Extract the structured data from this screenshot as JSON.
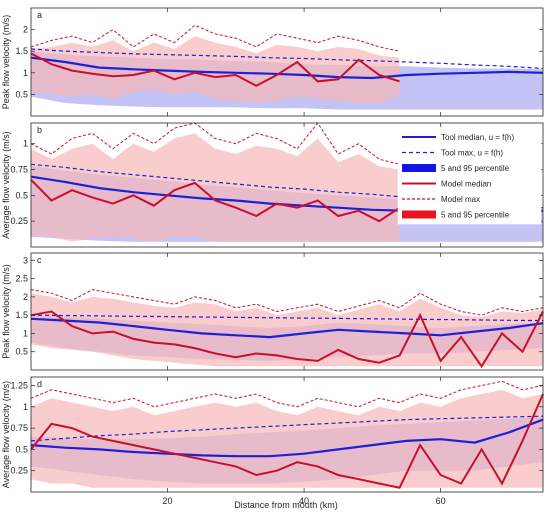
{
  "chart_data": {
    "type": "area",
    "xlabel": "Distance from mouth (km)",
    "xlim": [
      0,
      75
    ],
    "xticks": [
      "20",
      "40",
      "60"
    ],
    "xtick_values": [
      20,
      40,
      60
    ],
    "colors": {
      "tool_line": "#1f1fd6",
      "tool_band": "#b8b8f5",
      "model_line": "#c8102e",
      "model_band": "#f7b8b8"
    },
    "legend": {
      "placement": "right, in panel b",
      "entries": [
        {
          "label": "Tool median, u = f(h)",
          "style": "solid-blue"
        },
        {
          "label": "Tool max, u = f(h)",
          "style": "dashed-blue"
        },
        {
          "label": "5 and 95 percentile",
          "style": "blue-patch"
        },
        {
          "label": "Model median",
          "style": "solid-red"
        },
        {
          "label": "Model max",
          "style": "dashed-red"
        },
        {
          "label": "5 and 95 percentile",
          "style": "red-patch"
        }
      ]
    },
    "panels": [
      {
        "id": "a",
        "ylabel": "Peak flow velocity (m/s)",
        "ylim": [
          0,
          2.5
        ],
        "yticks": [
          0.5,
          1,
          1.5,
          2
        ],
        "ytick_labels": [
          "0.5",
          "1",
          "1.5",
          "2"
        ],
        "tool_x": [
          0,
          5,
          10,
          15,
          20,
          25,
          30,
          35,
          40,
          45,
          50,
          55,
          60,
          65,
          70,
          75
        ],
        "tool_median": [
          1.35,
          1.25,
          1.12,
          1.08,
          1.05,
          1.02,
          1.0,
          0.98,
          0.95,
          0.9,
          0.88,
          0.95,
          0.98,
          1.0,
          1.02,
          1.0
        ],
        "tool_max": [
          1.55,
          1.5,
          1.47,
          1.44,
          1.42,
          1.4,
          1.38,
          1.35,
          1.33,
          1.3,
          1.28,
          1.25,
          1.22,
          1.18,
          1.15,
          1.1
        ],
        "tool_p5": [
          0.45,
          0.3,
          0.25,
          0.22,
          0.2,
          0.2,
          0.2,
          0.18,
          0.18,
          0.15,
          0.15,
          0.15,
          0.15,
          0.15,
          0.15,
          0.15
        ],
        "tool_p95": [
          1.5,
          1.42,
          1.38,
          1.35,
          1.32,
          1.3,
          1.27,
          1.25,
          1.2,
          1.18,
          1.15,
          1.15,
          1.12,
          1.1,
          1.1,
          1.08
        ],
        "model_x": [
          0,
          3,
          6,
          9,
          12,
          15,
          18,
          21,
          24,
          27,
          30,
          33,
          36,
          39,
          42,
          45,
          48,
          51,
          54
        ],
        "model_median": [
          1.45,
          1.2,
          1.05,
          0.98,
          0.92,
          0.95,
          1.05,
          0.85,
          1.0,
          0.9,
          0.95,
          0.7,
          0.95,
          1.25,
          0.8,
          0.85,
          1.3,
          0.95,
          0.8
        ],
        "model_max": [
          1.6,
          1.75,
          1.85,
          1.7,
          2.0,
          1.6,
          1.9,
          1.7,
          2.1,
          1.9,
          1.8,
          1.6,
          1.9,
          1.8,
          1.7,
          1.85,
          1.75,
          1.6,
          1.5
        ],
        "model_p5": [
          0.55,
          0.5,
          0.45,
          0.5,
          0.4,
          0.55,
          0.6,
          0.5,
          0.55,
          0.4,
          0.35,
          0.3,
          0.35,
          0.45,
          0.4,
          0.35,
          0.3,
          0.3,
          0.45
        ],
        "model_p95": [
          1.55,
          1.6,
          1.7,
          1.6,
          1.75,
          1.5,
          1.7,
          1.55,
          1.85,
          1.7,
          1.6,
          1.45,
          1.65,
          1.6,
          1.5,
          1.6,
          1.55,
          1.4,
          1.35
        ]
      },
      {
        "id": "b",
        "ylabel": "Average flow velocity (m/s)",
        "ylim": [
          0,
          1.2
        ],
        "yticks": [
          0.25,
          0.5,
          0.75,
          1
        ],
        "ytick_labels": [
          "0.25",
          "0.5",
          "0.75",
          "1"
        ],
        "tool_x": [
          0,
          5,
          10,
          15,
          20,
          25,
          30,
          35,
          40,
          45,
          50,
          55,
          60,
          65,
          70,
          75
        ],
        "tool_median": [
          0.68,
          0.63,
          0.57,
          0.53,
          0.5,
          0.47,
          0.45,
          0.42,
          0.4,
          0.38,
          0.36,
          0.35,
          0.36,
          0.35,
          0.35,
          0.35
        ],
        "tool_max": [
          0.8,
          0.77,
          0.73,
          0.7,
          0.67,
          0.64,
          0.61,
          0.58,
          0.56,
          0.53,
          0.51,
          0.48,
          0.46,
          0.43,
          0.41,
          0.38
        ],
        "tool_p5": [
          0.1,
          0.08,
          0.06,
          0.05,
          0.05,
          0.05,
          0.05,
          0.05,
          0.05,
          0.05,
          0.05,
          0.05,
          0.05,
          0.05,
          0.05,
          0.05
        ],
        "tool_p95": [
          0.78,
          0.74,
          0.7,
          0.67,
          0.64,
          0.6,
          0.58,
          0.55,
          0.52,
          0.5,
          0.48,
          0.46,
          0.44,
          0.42,
          0.4,
          0.38
        ],
        "model_x": [
          0,
          3,
          6,
          9,
          12,
          15,
          18,
          21,
          24,
          27,
          30,
          33,
          36,
          39,
          42,
          45,
          48,
          51,
          54
        ],
        "model_median": [
          0.65,
          0.45,
          0.55,
          0.48,
          0.42,
          0.5,
          0.4,
          0.55,
          0.62,
          0.45,
          0.38,
          0.3,
          0.42,
          0.38,
          0.45,
          0.3,
          0.35,
          0.25,
          0.38
        ],
        "model_max": [
          1.0,
          0.9,
          1.05,
          1.1,
          0.95,
          1.1,
          1.0,
          1.15,
          1.2,
          1.05,
          1.0,
          1.1,
          1.05,
          0.95,
          1.2,
          0.9,
          1.0,
          0.85,
          0.8
        ],
        "model_p5": [
          0.1,
          0.1,
          0.05,
          0.08,
          0.1,
          0.08,
          0.05,
          0.1,
          0.1,
          0.05,
          0.05,
          0.05,
          0.05,
          0.05,
          0.05,
          0.05,
          0.05,
          0.05,
          0.05
        ],
        "model_p95": [
          0.95,
          0.85,
          0.95,
          1.0,
          0.85,
          1.0,
          0.92,
          1.05,
          1.1,
          0.95,
          0.9,
          0.98,
          0.95,
          0.88,
          1.05,
          0.82,
          0.9,
          0.78,
          0.75
        ]
      },
      {
        "id": "c",
        "ylabel": "Peak flow velocity (m/s)",
        "ylim": [
          0,
          3.2
        ],
        "yticks": [
          0.5,
          1,
          1.5,
          2,
          2.5,
          3
        ],
        "ytick_labels": [
          "0.5",
          "1",
          "1.5",
          "2",
          "2.5",
          "3"
        ],
        "tool_x": [
          0,
          5,
          10,
          15,
          20,
          25,
          30,
          35,
          40,
          45,
          50,
          55,
          60,
          65,
          70,
          75
        ],
        "tool_median": [
          1.4,
          1.35,
          1.3,
          1.2,
          1.1,
          1.0,
          0.95,
          0.9,
          1.0,
          1.1,
          1.05,
          1.0,
          0.95,
          1.05,
          1.15,
          1.28
        ],
        "tool_max": [
          1.5,
          1.49,
          1.48,
          1.47,
          1.46,
          1.45,
          1.44,
          1.43,
          1.42,
          1.41,
          1.4,
          1.39,
          1.38,
          1.37,
          1.36,
          1.35
        ],
        "tool_p5": [
          0.75,
          0.6,
          0.5,
          0.4,
          0.35,
          0.3,
          0.28,
          0.25,
          0.3,
          0.35,
          0.4,
          0.45,
          0.45,
          0.5,
          0.55,
          0.6
        ],
        "tool_p95": [
          1.48,
          1.45,
          1.4,
          1.35,
          1.3,
          1.25,
          1.2,
          1.15,
          1.2,
          1.3,
          1.25,
          1.2,
          1.15,
          1.2,
          1.25,
          1.3
        ],
        "model_x": [
          0,
          3,
          6,
          9,
          12,
          15,
          18,
          21,
          24,
          27,
          30,
          33,
          36,
          39,
          42,
          45,
          48,
          51,
          54,
          57,
          60,
          63,
          66,
          69,
          72,
          75
        ],
        "model_median": [
          1.5,
          1.6,
          1.2,
          1.0,
          1.05,
          0.85,
          0.75,
          0.7,
          0.6,
          0.45,
          0.35,
          0.45,
          0.4,
          0.3,
          0.25,
          0.55,
          0.3,
          0.2,
          0.4,
          1.5,
          0.25,
          0.9,
          0.1,
          1.0,
          0.5,
          1.6
        ],
        "model_max": [
          2.2,
          2.1,
          1.9,
          2.2,
          2.1,
          2.0,
          1.9,
          1.8,
          2.0,
          1.9,
          1.7,
          1.8,
          1.6,
          1.7,
          1.8,
          1.6,
          1.75,
          1.9,
          1.7,
          2.1,
          1.8,
          1.6,
          1.5,
          1.7,
          1.6,
          1.7
        ],
        "model_p5": [
          0.7,
          0.6,
          0.55,
          0.5,
          0.4,
          0.3,
          0.25,
          0.2,
          0.15,
          0.1,
          0.1,
          0.1,
          0.1,
          0.1,
          0.1,
          0.1,
          0.1,
          0.1,
          0.1,
          0.1,
          0.1,
          0.1,
          0.1,
          0.1,
          0.1,
          0.1
        ],
        "model_p95": [
          2.1,
          2.0,
          1.85,
          2.0,
          1.95,
          1.85,
          1.75,
          1.7,
          1.85,
          1.8,
          1.6,
          1.7,
          1.5,
          1.6,
          1.7,
          1.5,
          1.65,
          1.8,
          1.6,
          1.95,
          1.7,
          1.5,
          1.45,
          1.6,
          1.55,
          1.65
        ]
      },
      {
        "id": "d",
        "ylabel": "Average flow velocity (m/s)",
        "ylim": [
          0,
          1.35
        ],
        "yticks": [
          0.25,
          0.5,
          0.75,
          1,
          1.25
        ],
        "ytick_labels": [
          "0.25",
          "0.5",
          "0.75",
          "1",
          "1.25"
        ],
        "tool_x": [
          0,
          5,
          10,
          15,
          20,
          25,
          30,
          35,
          40,
          45,
          50,
          55,
          60,
          65,
          70,
          75
        ],
        "tool_median": [
          0.55,
          0.52,
          0.5,
          0.47,
          0.45,
          0.43,
          0.42,
          0.42,
          0.45,
          0.5,
          0.55,
          0.6,
          0.62,
          0.58,
          0.7,
          0.85
        ],
        "tool_max": [
          0.6,
          0.63,
          0.66,
          0.68,
          0.71,
          0.73,
          0.75,
          0.77,
          0.79,
          0.81,
          0.83,
          0.85,
          0.86,
          0.87,
          0.88,
          0.89
        ],
        "tool_p5": [
          0.3,
          0.25,
          0.2,
          0.15,
          0.12,
          0.1,
          0.1,
          0.1,
          0.12,
          0.15,
          0.2,
          0.25,
          0.25,
          0.25,
          0.3,
          0.35
        ],
        "tool_p95": [
          0.65,
          0.63,
          0.62,
          0.62,
          0.63,
          0.65,
          0.68,
          0.7,
          0.72,
          0.75,
          0.78,
          0.8,
          0.82,
          0.84,
          0.86,
          0.88
        ],
        "model_x": [
          0,
          3,
          6,
          9,
          12,
          15,
          18,
          21,
          24,
          27,
          30,
          33,
          36,
          39,
          42,
          45,
          48,
          51,
          54,
          57,
          60,
          63,
          66,
          69,
          72,
          75
        ],
        "model_median": [
          0.5,
          0.8,
          0.75,
          0.65,
          0.6,
          0.55,
          0.5,
          0.45,
          0.4,
          0.35,
          0.3,
          0.2,
          0.25,
          0.35,
          0.3,
          0.2,
          0.15,
          0.1,
          0.05,
          0.55,
          0.2,
          0.1,
          0.5,
          0.1,
          0.6,
          1.15
        ],
        "model_max": [
          1.1,
          1.2,
          1.15,
          1.1,
          1.05,
          1.1,
          1.0,
          1.05,
          1.1,
          1.15,
          1.1,
          1.15,
          1.05,
          1.0,
          1.1,
          1.05,
          1.0,
          1.1,
          1.05,
          1.15,
          1.1,
          1.2,
          1.25,
          1.3,
          1.2,
          1.25
        ],
        "model_p5": [
          0.15,
          0.1,
          0.1,
          0.05,
          0.05,
          0.05,
          0.05,
          0.05,
          0.05,
          0.05,
          0.05,
          0.05,
          0.05,
          0.05,
          0.05,
          0.05,
          0.05,
          0.05,
          0.05,
          0.05,
          0.05,
          0.05,
          0.05,
          0.05,
          0.05,
          0.05
        ],
        "model_p95": [
          1.0,
          1.1,
          1.05,
          1.0,
          0.95,
          1.0,
          0.9,
          0.95,
          1.0,
          1.05,
          1.0,
          1.05,
          0.95,
          0.9,
          1.0,
          0.95,
          0.9,
          1.0,
          0.95,
          1.05,
          1.0,
          1.1,
          1.15,
          1.2,
          1.1,
          1.15
        ]
      }
    ]
  }
}
